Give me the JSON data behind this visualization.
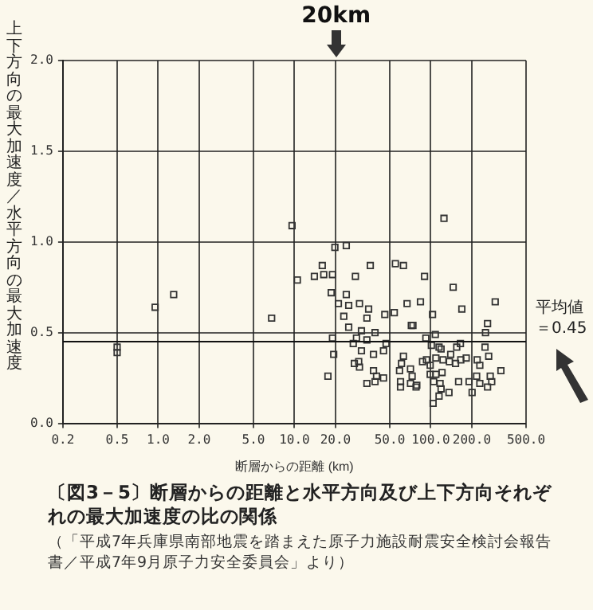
{
  "chart_data": {
    "type": "scatter",
    "title": "〔図3－5〕断層からの距離と水平方向及び上下方向それぞれの最大加速度の比の関係",
    "xlabel": "断層からの距離 (km)",
    "ylabel": "上下方向の最大加速度／水平方向の最大加速度",
    "annotations": [
      "20km",
      "（「平成7年兵庫県南部地震を踏まえた原子力施設耐震安全検討会報告書／平成7年9月原子力安全委員会」より）"
    ],
    "log": "x",
    "xlim": [
      0.2,
      500
    ],
    "ylim": [
      0,
      2
    ],
    "xticks": [
      0.2,
      0.5,
      {
        "value": 1,
        "label": "1.0"
      },
      {
        "value": 2,
        "label": "2.0"
      },
      {
        "value": 5,
        "label": "5.0"
      },
      {
        "value": 10,
        "label": "10.0"
      },
      {
        "value": 20,
        "label": "20.0"
      },
      {
        "value": 50,
        "label": "50.0"
      },
      {
        "value": 100,
        "label": "100.0"
      },
      {
        "value": 200,
        "label": "200.0"
      },
      {
        "value": 500,
        "label": "500.0"
      }
    ],
    "yticks": [
      {
        "value": 0,
        "label": "0.0"
      },
      0.5,
      {
        "value": 1,
        "label": "1.0"
      },
      1.5,
      {
        "value": 2,
        "label": "2.0"
      }
    ],
    "grid": true,
    "legend": false,
    "marker": "square",
    "ref_lines": [
      {
        "axis": "y",
        "value": 0.45,
        "label": "平均値＝0.45"
      }
    ],
    "series": [
      {
        "color": "#333333",
        "x": [
          0.5,
          0.5,
          0.95,
          1.3,
          6.8,
          9.6,
          10.5,
          125,
          19.8,
          24,
          16,
          14,
          16.4,
          19,
          28,
          36,
          18.6,
          24,
          21,
          25,
          23,
          30,
          35,
          34,
          55,
          63,
          90,
          146,
          297,
          169,
          67,
          84,
          54,
          46,
          103,
          72,
          74,
          261,
          25,
          31,
          39,
          19,
          27,
          28.5,
          34,
          47,
          92,
          108,
          252,
          31,
          38,
          45,
          63,
          87,
          93,
          101,
          115,
          119,
          140,
          155,
          165,
          250,
          109,
          123,
          137,
          152,
          166,
          182,
          219,
          229,
          266,
          327,
          17.6,
          19.4,
          27.5,
          30,
          29.6,
          34,
          38,
          40,
          39,
          45,
          61,
          59,
          60,
          60,
          71,
          73,
          71,
          79,
          78,
          99,
          99,
          109,
          121,
          105,
          117,
          119,
          115,
          104,
          136,
          160,
          191,
          201,
          217,
          229,
          261,
          273,
          280
        ],
        "values": [
          0.42,
          0.39,
          0.64,
          0.71,
          0.58,
          1.09,
          0.79,
          1.13,
          0.97,
          0.98,
          0.87,
          0.81,
          0.82,
          0.82,
          0.81,
          0.87,
          0.72,
          0.71,
          0.66,
          0.65,
          0.59,
          0.66,
          0.63,
          0.58,
          0.88,
          0.87,
          0.81,
          0.75,
          0.67,
          0.63,
          0.66,
          0.67,
          0.61,
          0.6,
          0.6,
          0.54,
          0.54,
          0.55,
          0.53,
          0.51,
          0.5,
          0.47,
          0.44,
          0.47,
          0.46,
          0.44,
          0.47,
          0.49,
          0.5,
          0.4,
          0.38,
          0.4,
          0.37,
          0.34,
          0.35,
          0.43,
          0.42,
          0.41,
          0.38,
          0.42,
          0.44,
          0.42,
          0.36,
          0.35,
          0.34,
          0.33,
          0.35,
          0.36,
          0.35,
          0.32,
          0.37,
          0.29,
          0.26,
          0.38,
          0.33,
          0.31,
          0.34,
          0.22,
          0.29,
          0.26,
          0.23,
          0.25,
          0.33,
          0.29,
          0.23,
          0.2,
          0.3,
          0.26,
          0.22,
          0.21,
          0.2,
          0.32,
          0.27,
          0.27,
          0.28,
          0.23,
          0.22,
          0.19,
          0.15,
          0.11,
          0.17,
          0.23,
          0.23,
          0.17,
          0.26,
          0.22,
          0.2,
          0.26,
          0.23
        ]
      }
    ]
  }
}
